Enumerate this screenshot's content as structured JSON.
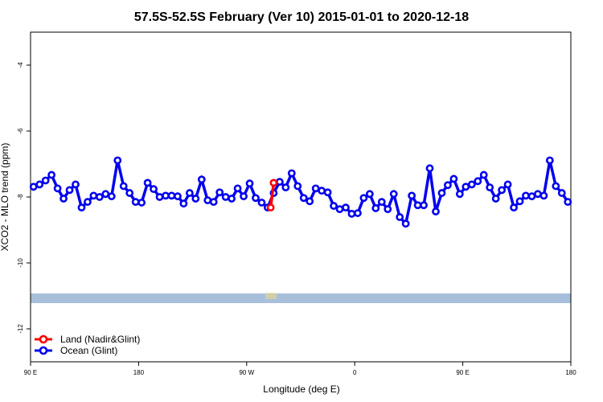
{
  "chart_data": {
    "type": "line",
    "title": "57.5S-52.5S February (Ver 10)   2015-01-01 to 2020-12-18",
    "x_label": "Longitude (deg E)",
    "y_label": "XCO2 - MLO trend (ppm)",
    "xlim": [
      90,
      540
    ],
    "xticks": [
      {
        "value": 90,
        "label": "90 E"
      },
      180,
      {
        "value": 270,
        "label": "90 W"
      },
      {
        "value": 360,
        "label": "0"
      },
      {
        "value": 450,
        "label": "90 E"
      },
      {
        "value": 540,
        "label": "180"
      }
    ],
    "ylim": [
      -13,
      -3
    ],
    "yticks": [
      -4,
      -6,
      -8,
      -10,
      -12
    ],
    "legend": "bottom-left",
    "series": [
      {
        "name": "Land (Nadir&Glint)",
        "color": "#ff0000",
        "x": [
          290,
          292.5
        ],
        "values": [
          -8.32,
          -7.57
        ]
      },
      {
        "name": "Ocean (Glint)",
        "color": "#0000ee",
        "x": [
          92.5,
          97.5,
          102.5,
          107.5,
          112.5,
          117.5,
          122.5,
          127.5,
          132.5,
          137.5,
          142.5,
          147.5,
          152.5,
          157.5,
          162.5,
          167.5,
          172.5,
          177.5,
          182.5,
          187.5,
          192.5,
          197.5,
          202.5,
          207.5,
          212.5,
          217.5,
          222.5,
          227.5,
          232.5,
          237.5,
          242.5,
          247.5,
          252.5,
          257.5,
          262.5,
          267.5,
          272.5,
          277.5,
          282.5,
          287.5,
          292.5,
          297.5,
          302.5,
          307.5,
          312.5,
          317.5,
          322.5,
          327.5,
          332.5,
          337.5,
          342.5,
          347.5,
          352.5,
          357.5,
          362.5,
          367.5,
          372.5,
          377.5,
          382.5,
          387.5,
          392.5,
          397.5,
          402.5,
          407.5,
          412.5,
          417.5,
          422.5,
          427.5,
          432.5,
          437.5,
          442.5,
          447.5,
          452.5,
          457.5,
          462.5,
          467.5,
          472.5,
          477.5,
          482.5,
          487.5,
          492.5,
          497.5,
          502.5,
          507.5,
          512.5,
          517.5,
          522.5,
          527.5,
          532.5,
          537.5
        ],
        "values": [
          -7.69,
          -7.62,
          -7.5,
          -7.33,
          -7.74,
          -8.05,
          -7.79,
          -7.62,
          -8.32,
          -8.15,
          -7.96,
          -8.0,
          -7.91,
          -7.98,
          -6.89,
          -7.67,
          -7.88,
          -8.15,
          -8.17,
          -7.57,
          -7.76,
          -8.0,
          -7.96,
          -7.96,
          -7.98,
          -8.2,
          -7.88,
          -8.05,
          -7.47,
          -8.1,
          -8.15,
          -7.86,
          -8.0,
          -8.05,
          -7.74,
          -7.98,
          -7.59,
          -8.03,
          -8.17,
          -8.32,
          -7.88,
          -7.54,
          -7.71,
          -7.28,
          -7.67,
          -8.03,
          -8.13,
          -7.74,
          -7.81,
          -7.86,
          -8.27,
          -8.37,
          -8.32,
          -8.51,
          -8.49,
          -8.03,
          -7.91,
          -8.34,
          -8.15,
          -8.37,
          -7.91,
          -8.61,
          -8.81,
          -7.96,
          -8.25,
          -8.25,
          -7.13,
          -8.44,
          -7.88,
          -7.64,
          -7.45,
          -7.91,
          -7.69,
          -7.62,
          -7.52,
          -7.33,
          -7.71,
          -8.05,
          -7.79,
          -7.62,
          -8.32,
          -8.13,
          -7.96,
          -7.98,
          -7.91,
          -7.96,
          -6.89,
          -7.67,
          -7.88,
          -8.15
        ]
      }
    ]
  }
}
